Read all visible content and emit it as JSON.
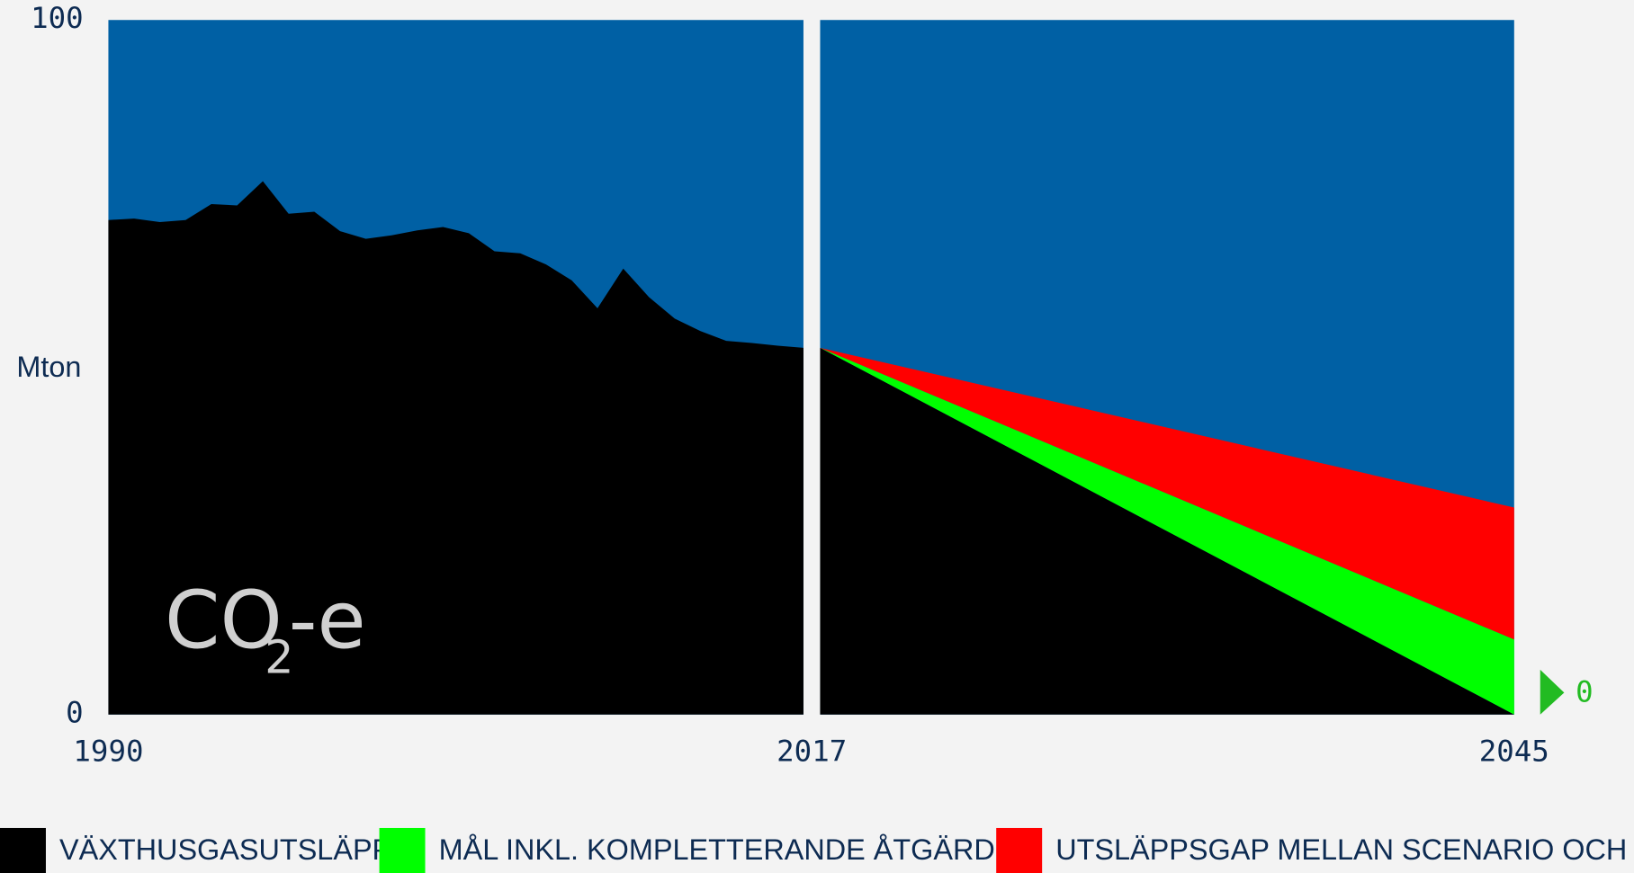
{
  "chart_data": [
    {
      "type": "area",
      "background": "#0060a4",
      "ylabel": "Mton",
      "ylim": [
        0,
        100
      ],
      "yticks": [
        0,
        100
      ],
      "xlim": [
        1990,
        2017
      ],
      "xticks": [
        1990,
        2017
      ],
      "unit_label": [
        "CO",
        "2",
        "-e"
      ],
      "x": [
        1990,
        1991,
        1992,
        1993,
        1994,
        1995,
        1996,
        1997,
        1998,
        1999,
        2000,
        2001,
        2002,
        2003,
        2004,
        2005,
        2006,
        2007,
        2008,
        2009,
        2010,
        2011,
        2012,
        2013,
        2014,
        2015,
        2016,
        2017
      ],
      "series": [
        {
          "color": "#000000",
          "values": [
            71.2,
            71.4,
            70.9,
            71.2,
            73.5,
            73.3,
            76.8,
            72.1,
            72.4,
            69.6,
            68.5,
            69.0,
            69.7,
            70.2,
            69.3,
            66.7,
            66.4,
            64.8,
            62.5,
            58.5,
            64.2,
            60.1,
            57.0,
            55.2,
            53.8,
            53.5,
            53.1,
            52.8
          ]
        }
      ]
    },
    {
      "type": "stacked_area",
      "background": "#0060a4",
      "ylim": [
        0,
        100
      ],
      "xlim": [
        2017,
        2045
      ],
      "xticks": [
        2045
      ],
      "annotation": "0",
      "annotation_color": "#22bb22",
      "x": [
        2017,
        2045
      ],
      "series": [
        {
          "name": "VÄXTHUSGASUTSLÄPP",
          "color": "#000000",
          "values": [
            52.8,
            0
          ]
        },
        {
          "name": "MÅL INKL. KOMPLETTERANDE ÅTGÄRDER",
          "color": "#00ff00",
          "values": [
            0,
            10.8
          ]
        },
        {
          "name": "UTSLÄPPSGAP MELLAN SCENARIO OCH MÅL",
          "color": "#ff0000",
          "values": [
            0,
            19.0
          ]
        }
      ]
    }
  ]
}
